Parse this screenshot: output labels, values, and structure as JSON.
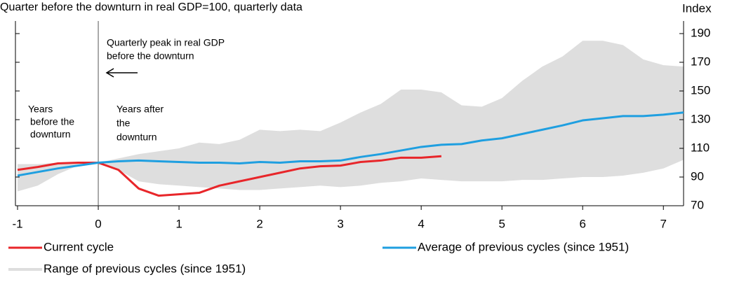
{
  "chart_data": {
    "type": "line",
    "subtitle": "Quarter before the downturn in real GDP=100, quarterly data",
    "y_axis_label": "Index",
    "annotations": {
      "peak": [
        "Quarterly peak in real GDP",
        "before the downturn"
      ],
      "before": [
        "Years",
        "before the",
        "downturn"
      ],
      "after": [
        "Years after",
        "the",
        "downturn"
      ]
    },
    "x": [
      -1,
      -0.75,
      -0.5,
      -0.25,
      0,
      0.25,
      0.5,
      0.75,
      1,
      1.25,
      1.5,
      1.75,
      2,
      2.25,
      2.5,
      2.75,
      3,
      3.25,
      3.5,
      3.75,
      4,
      4.25,
      4.5,
      4.75,
      5,
      5.25,
      5.5,
      5.75,
      6,
      6.25,
      6.5,
      6.75,
      7,
      7.25
    ],
    "series": [
      {
        "name": "Current cycle",
        "color": "#e8262a",
        "values": [
          95,
          97,
          99.5,
          100,
          100,
          95,
          82,
          77,
          78,
          79,
          84,
          87,
          90,
          93,
          96,
          97.5,
          98,
          100.5,
          101.5,
          103.5,
          103.5,
          104.5,
          null,
          null,
          null,
          null,
          null,
          null,
          null,
          null,
          null,
          null,
          null,
          null
        ]
      },
      {
        "name": "Average of previous cycles (since 1951)",
        "color": "#1f9fe0",
        "values": [
          91,
          93.5,
          96,
          98,
          100,
          101,
          101.5,
          101,
          100.5,
          100,
          100,
          99.5,
          100.5,
          100,
          101,
          101,
          101.5,
          104,
          106,
          108.5,
          111,
          112.5,
          113,
          115.5,
          117,
          120,
          123,
          126,
          129.5,
          131,
          132.5,
          132.5,
          133.5,
          135
        ]
      },
      {
        "name": "Range of previous cycles (since 1951)",
        "color": "#dedede",
        "upper": [
          99,
          99,
          100,
          100,
          100,
          103,
          106,
          108,
          110,
          114,
          113,
          116,
          123,
          122,
          123,
          122,
          128,
          135,
          141,
          151,
          151,
          149,
          140,
          139,
          145,
          157,
          167,
          174,
          185,
          185,
          182,
          172,
          168,
          167
        ],
        "lower": [
          80,
          84,
          92,
          98,
          100,
          95,
          87,
          85,
          84,
          83,
          82,
          81,
          81,
          82,
          83,
          84,
          83,
          84,
          86,
          87,
          89,
          88,
          87,
          87,
          87,
          88,
          88,
          89,
          90,
          90,
          91,
          93,
          96,
          102
        ]
      }
    ],
    "xlim": [
      -1,
      7.25
    ],
    "xticks": [
      -1,
      0,
      1,
      2,
      3,
      4,
      5,
      6,
      7
    ],
    "ylim": [
      70,
      190
    ],
    "yticks": [
      70,
      90,
      110,
      130,
      150,
      170,
      190
    ]
  }
}
